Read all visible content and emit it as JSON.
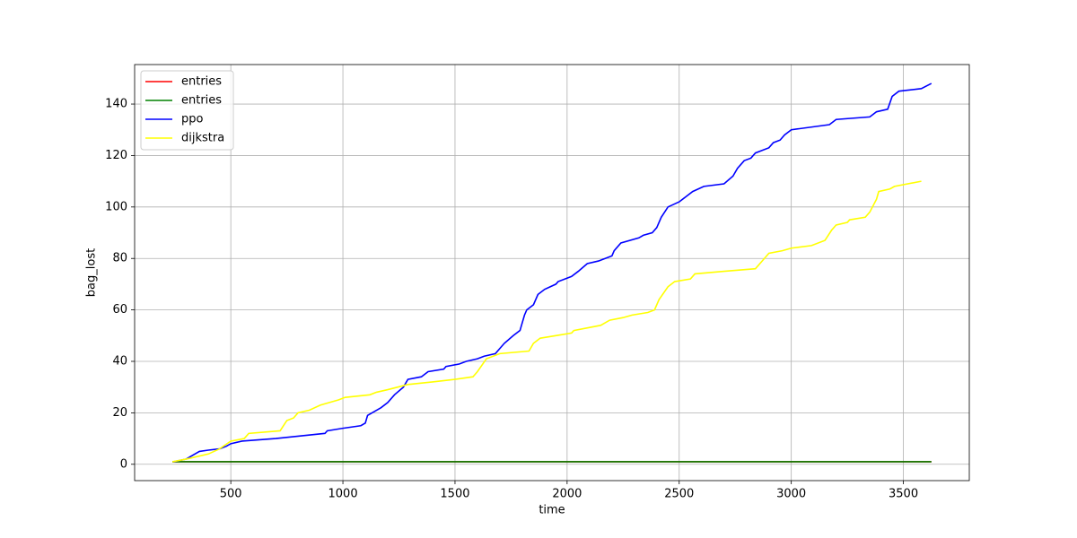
{
  "chart_data": {
    "type": "line",
    "xlabel": "time",
    "ylabel": "bag_lost",
    "xlim": [
      71,
      3794
    ],
    "ylim": [
      -6.35,
      155.35
    ],
    "xticks": [
      500,
      1000,
      1500,
      2000,
      2500,
      3000,
      3500
    ],
    "yticks": [
      0,
      20,
      40,
      60,
      80,
      100,
      120,
      140
    ],
    "grid": true,
    "legend": "upper-left",
    "series": [
      {
        "name": "entries",
        "color": "#ff0000",
        "x": [
          240,
          3625
        ],
        "values": [
          1,
          1
        ]
      },
      {
        "name": "entries",
        "color": "#008000",
        "x": [
          240,
          3625
        ],
        "values": [
          1,
          1
        ]
      },
      {
        "name": "ppo",
        "color": "#0000ff",
        "x": [
          245,
          300,
          320,
          360,
          400,
          450,
          480,
          500,
          550,
          700,
          920,
          930,
          1000,
          1080,
          1100,
          1110,
          1150,
          1170,
          1200,
          1230,
          1270,
          1290,
          1350,
          1380,
          1450,
          1460,
          1520,
          1550,
          1600,
          1630,
          1680,
          1700,
          1720,
          1760,
          1790,
          1800,
          1810,
          1820,
          1850,
          1870,
          1900,
          1950,
          1960,
          2020,
          2050,
          2090,
          2140,
          2200,
          2210,
          2240,
          2320,
          2340,
          2380,
          2400,
          2420,
          2450,
          2500,
          2530,
          2560,
          2610,
          2700,
          2740,
          2760,
          2790,
          2820,
          2840,
          2900,
          2920,
          2950,
          2970,
          3000,
          3170,
          3200,
          3350,
          3380,
          3430,
          3450,
          3480,
          3580,
          3625
        ],
        "values": [
          1,
          2,
          3,
          5,
          5.5,
          6,
          7,
          8,
          9,
          10,
          12,
          13,
          14,
          15,
          16,
          19,
          21,
          22,
          24,
          27,
          30,
          33,
          34,
          36,
          37,
          38,
          39,
          40,
          41,
          42,
          43,
          45,
          47,
          50,
          52,
          55,
          58,
          60,
          62,
          66,
          68,
          70,
          71,
          73,
          75,
          78,
          79,
          81,
          83,
          86,
          88,
          89,
          90,
          92,
          96,
          100,
          102,
          104,
          106,
          108,
          109,
          112,
          115,
          118,
          119,
          121,
          123,
          125,
          126,
          128,
          130,
          132,
          134,
          135,
          137,
          138,
          143,
          145,
          146,
          148
        ]
      },
      {
        "name": "dijkstra",
        "color": "#ffff00",
        "x": [
          240,
          300,
          400,
          450,
          500,
          560,
          580,
          720,
          750,
          780,
          800,
          850,
          900,
          980,
          1010,
          1120,
          1150,
          1200,
          1290,
          1400,
          1500,
          1580,
          1600,
          1640,
          1700,
          1830,
          1850,
          1880,
          1950,
          2020,
          2030,
          2150,
          2190,
          2250,
          2290,
          2360,
          2390,
          2410,
          2450,
          2480,
          2550,
          2570,
          2700,
          2840,
          2870,
          2900,
          2960,
          3000,
          3090,
          3150,
          3180,
          3200,
          3250,
          3260,
          3330,
          3350,
          3380,
          3390,
          3440,
          3460,
          3580
        ],
        "values": [
          1,
          2,
          4,
          6,
          9,
          10,
          12,
          13,
          17,
          18,
          20,
          21,
          23,
          25,
          26,
          27,
          28,
          29,
          31,
          32,
          33,
          34,
          36,
          41,
          43,
          44,
          47,
          49,
          50,
          51,
          52,
          54,
          56,
          57,
          58,
          59,
          60,
          64,
          69,
          71,
          72,
          74,
          75,
          76,
          79,
          82,
          83,
          84,
          85,
          87,
          91,
          93,
          94,
          95,
          96,
          98,
          103,
          106,
          107,
          108,
          110
        ]
      }
    ]
  }
}
